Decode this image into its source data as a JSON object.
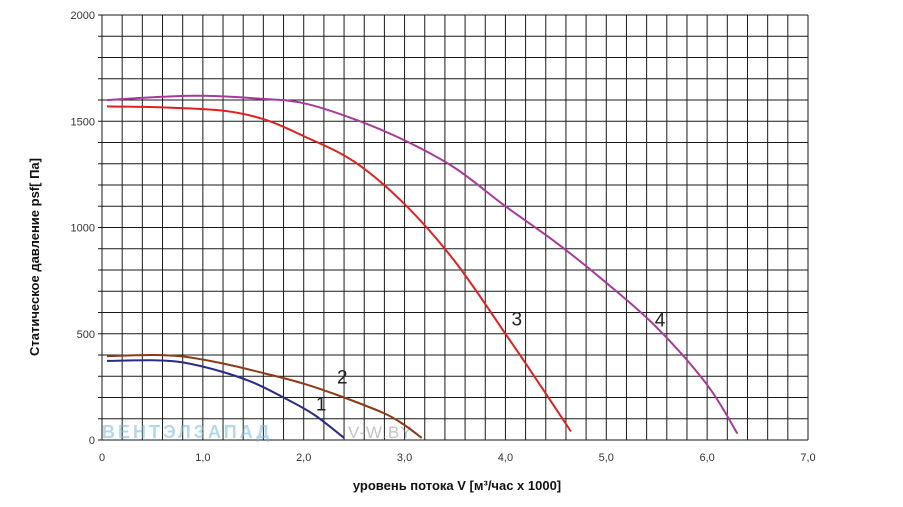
{
  "chart_data": {
    "type": "line",
    "xlabel": "уровень потока  V [м³/час x 1000]",
    "ylabel": "Статическое давление  psf[ Па]",
    "xlim": [
      0,
      7.0
    ],
    "ylim": [
      0,
      2000
    ],
    "x_ticks": [
      "0",
      "1,0",
      "2,0",
      "3,0",
      "4,0",
      "5,0",
      "6,0",
      "7,0"
    ],
    "y_ticks": [
      "0",
      "500",
      "1000",
      "1500",
      "2000"
    ],
    "grid": true,
    "series": [
      {
        "name": "1",
        "color": "#2a2a8c",
        "points": [
          [
            0.05,
            372
          ],
          [
            0.5,
            375
          ],
          [
            0.8,
            365
          ],
          [
            1.2,
            320
          ],
          [
            1.5,
            270
          ],
          [
            1.8,
            200
          ],
          [
            2.1,
            120
          ],
          [
            2.4,
            10
          ]
        ]
      },
      {
        "name": "2",
        "color": "#8b3a16",
        "points": [
          [
            0.05,
            395
          ],
          [
            0.5,
            400
          ],
          [
            0.8,
            393
          ],
          [
            1.2,
            360
          ],
          [
            1.6,
            315
          ],
          [
            2.0,
            265
          ],
          [
            2.4,
            200
          ],
          [
            2.8,
            125
          ],
          [
            3.0,
            70
          ],
          [
            3.17,
            10
          ]
        ]
      },
      {
        "name": "3",
        "color": "#e02020",
        "points": [
          [
            0.05,
            1570
          ],
          [
            0.6,
            1565
          ],
          [
            1.2,
            1550
          ],
          [
            1.6,
            1510
          ],
          [
            2.0,
            1430
          ],
          [
            2.5,
            1310
          ],
          [
            3.0,
            1110
          ],
          [
            3.5,
            840
          ],
          [
            4.0,
            500
          ],
          [
            4.3,
            290
          ],
          [
            4.65,
            40
          ]
        ]
      },
      {
        "name": "4",
        "color": "#a8399a",
        "points": [
          [
            0.05,
            1600
          ],
          [
            0.6,
            1615
          ],
          [
            1.0,
            1620
          ],
          [
            1.6,
            1605
          ],
          [
            2.0,
            1585
          ],
          [
            2.5,
            1510
          ],
          [
            3.0,
            1410
          ],
          [
            3.5,
            1280
          ],
          [
            4.0,
            1100
          ],
          [
            4.5,
            930
          ],
          [
            5.0,
            740
          ],
          [
            5.5,
            530
          ],
          [
            6.0,
            260
          ],
          [
            6.3,
            30
          ]
        ]
      }
    ],
    "curve_labels": [
      {
        "text": "1",
        "x": 2.12,
        "y": 140
      },
      {
        "text": "2",
        "x": 2.33,
        "y": 265
      },
      {
        "text": "3",
        "x": 4.06,
        "y": 540
      },
      {
        "text": "4",
        "x": 5.48,
        "y": 535
      }
    ]
  },
  "watermark": {
    "brand": "ВЕНТЭЛЗАПАД",
    "site": "V-W.BY"
  }
}
